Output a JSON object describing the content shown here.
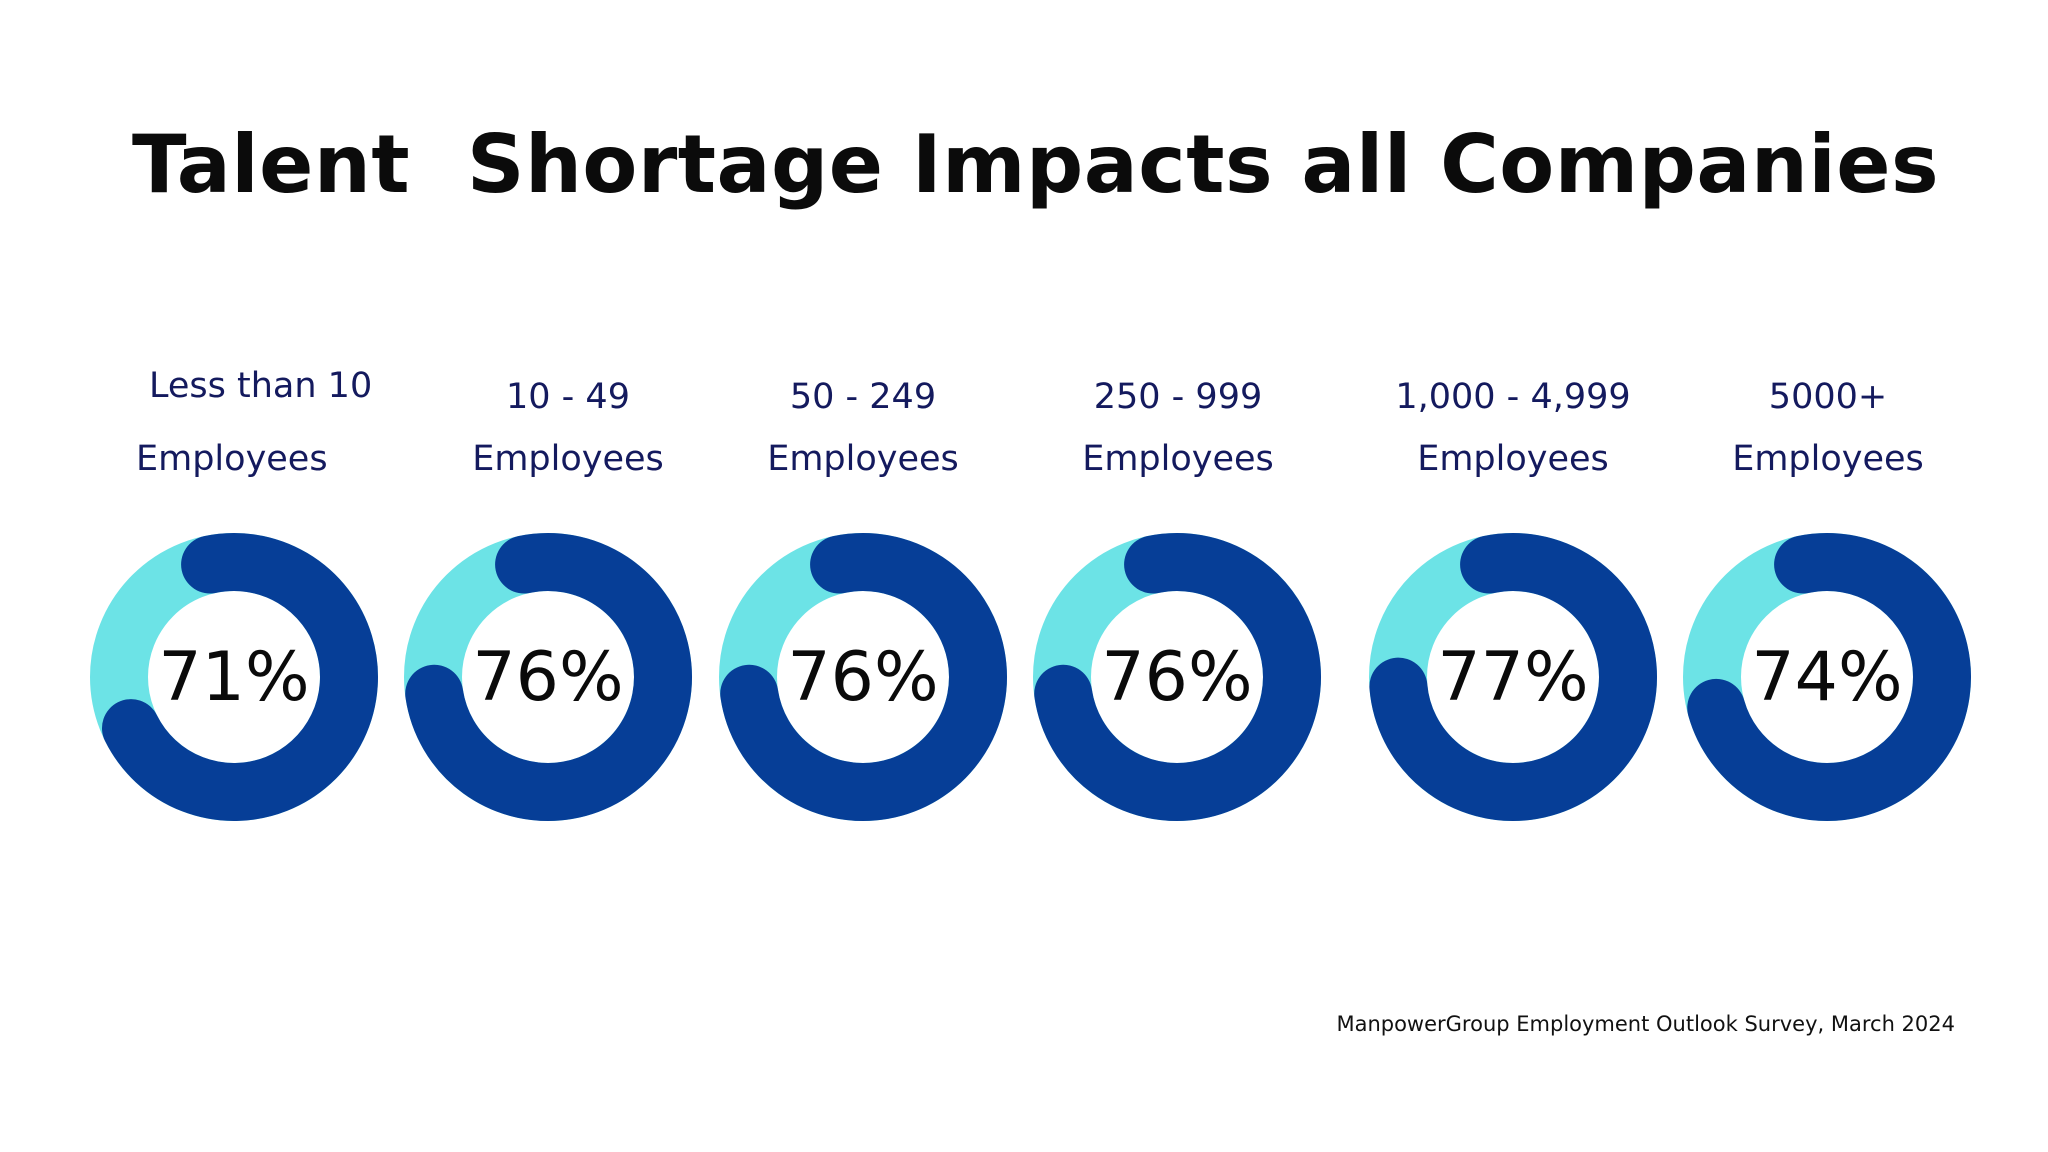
{
  "title": "Talent  Shortage Impacts all Companies",
  "source": "ManpowerGroup Employment Outlook Survey, March 2024",
  "colors": {
    "filled": "#063e97",
    "remaining": "#6ce3e6",
    "label": "#141a5e"
  },
  "chart_data": {
    "type": "pie",
    "title": "Talent  Shortage Impacts all Companies",
    "unit": "%",
    "categories": [
      {
        "line1": "Less than 10",
        "line2": "Employees"
      },
      {
        "line1": "10 - 49",
        "line2": "Employees"
      },
      {
        "line1": "50 - 249",
        "line2": "Employees"
      },
      {
        "line1": "250 - 999",
        "line2": "Employees"
      },
      {
        "line1": "1,000 - 4,999",
        "line2": "Employees"
      },
      {
        "line1": "5000+",
        "line2": "Employees"
      }
    ],
    "values": [
      71,
      76,
      76,
      76,
      77,
      74
    ],
    "labels": [
      "71%",
      "76%",
      "76%",
      "76%",
      "77%",
      "74%"
    ]
  }
}
